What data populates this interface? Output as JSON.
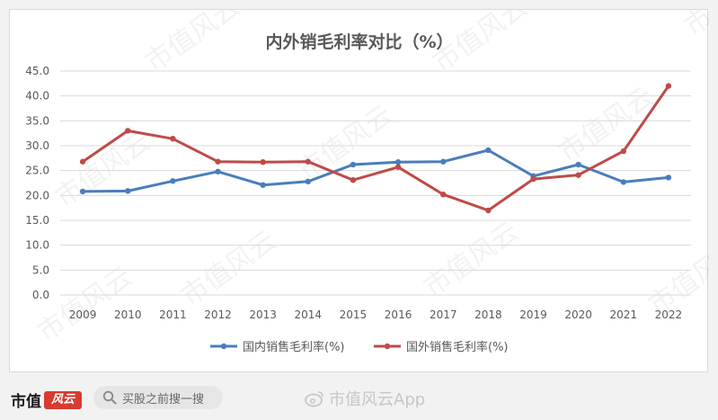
{
  "chart_data": {
    "type": "line",
    "title": "内外销毛利率对比（%）",
    "categories": [
      "2009",
      "2010",
      "2011",
      "2012",
      "2013",
      "2014",
      "2015",
      "2016",
      "2017",
      "2018",
      "2019",
      "2020",
      "2021",
      "2022"
    ],
    "ylim": [
      0,
      45
    ],
    "yticks": [
      "0.0",
      "5.0",
      "10.0",
      "15.0",
      "20.0",
      "25.0",
      "30.0",
      "35.0",
      "40.0",
      "45.0"
    ],
    "grid": true,
    "legend_position": "bottom",
    "series": [
      {
        "name": "国内销售毛利率(%)",
        "color": "#4a7ebb",
        "values": [
          20.8,
          20.9,
          22.9,
          24.8,
          22.1,
          22.8,
          26.2,
          26.7,
          26.8,
          29.1,
          23.9,
          26.2,
          22.7,
          23.6
        ]
      },
      {
        "name": "国外销售毛利率(%)",
        "color": "#be4b48",
        "values": [
          26.8,
          33.0,
          31.4,
          26.8,
          26.7,
          26.8,
          23.1,
          25.7,
          20.2,
          17.0,
          23.3,
          24.1,
          28.9,
          42.0
        ]
      }
    ]
  },
  "footer": {
    "brand_text": "市值",
    "brand_mark": "风云",
    "search_text": "买股之前搜一搜",
    "weibo_text": "市值风云App"
  },
  "watermark_text": "市值风云"
}
